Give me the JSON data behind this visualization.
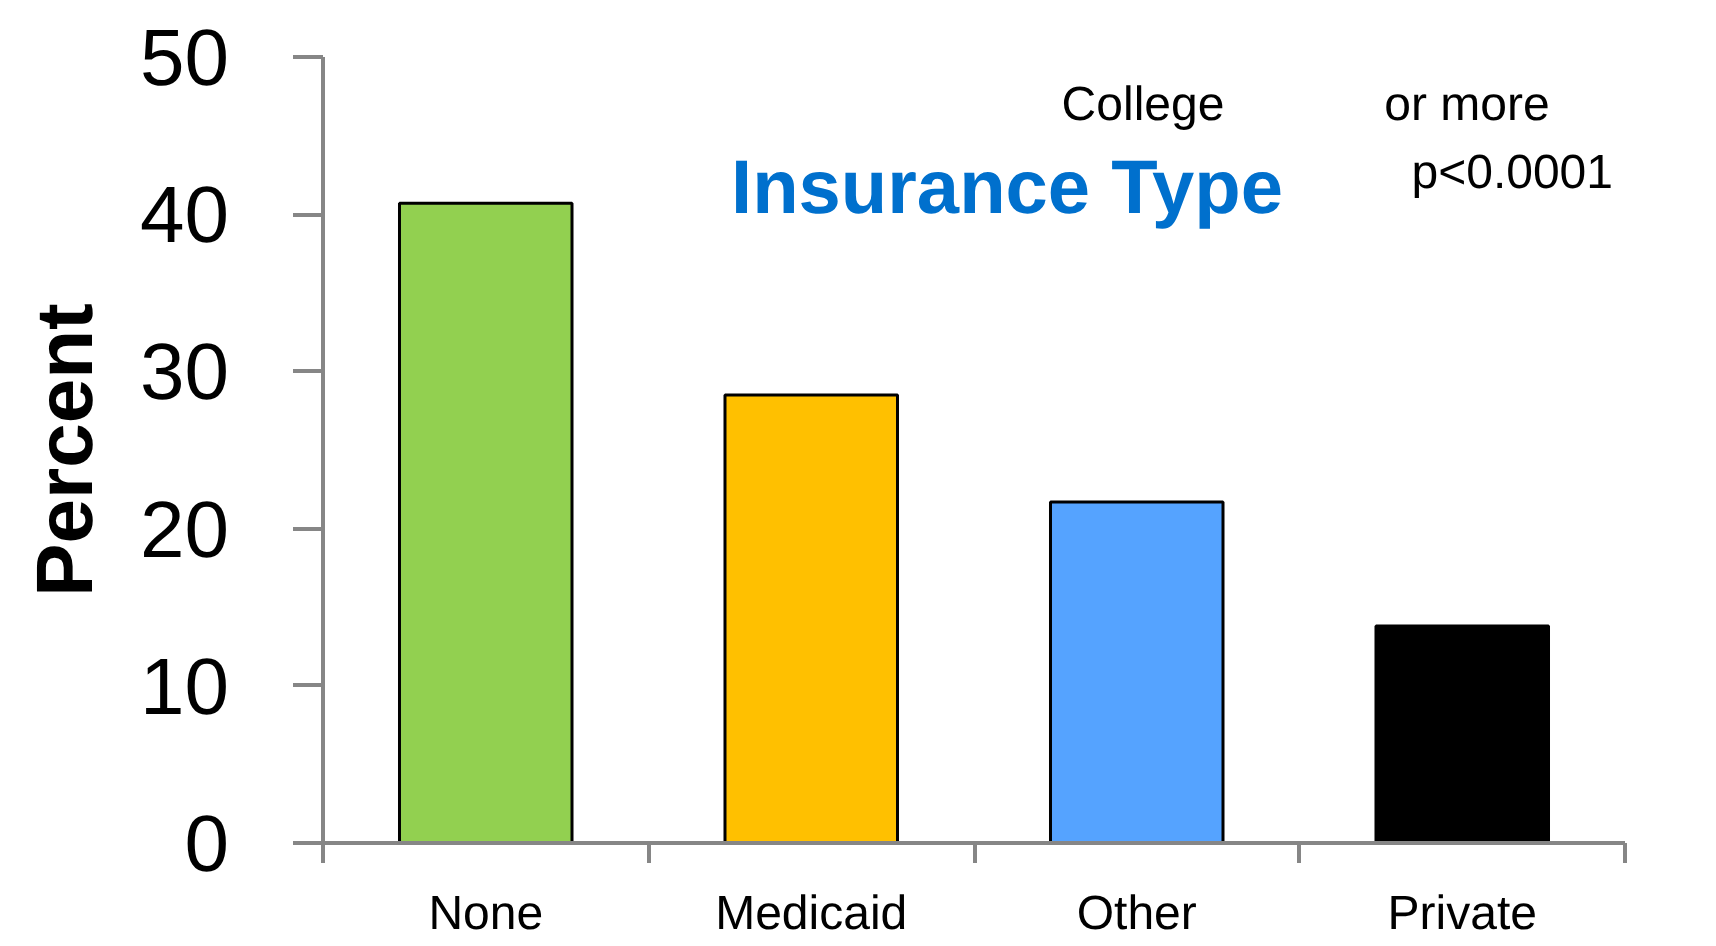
{
  "chart_data": {
    "type": "bar",
    "title": "Insurance Type",
    "ylabel": "Percent",
    "categories": [
      "None",
      "Medicaid",
      "Other",
      "Private"
    ],
    "values": [
      40.7,
      28.5,
      21.7,
      13.8
    ],
    "colors": [
      "#92d050",
      "#ffc000",
      "#55a3ff",
      "#000000"
    ],
    "ylim": [
      0,
      50
    ],
    "yticks": [
      0,
      10,
      20,
      30,
      40,
      50
    ],
    "grid": false,
    "annotations": [
      "p<0.0001",
      "College",
      "or more"
    ]
  }
}
